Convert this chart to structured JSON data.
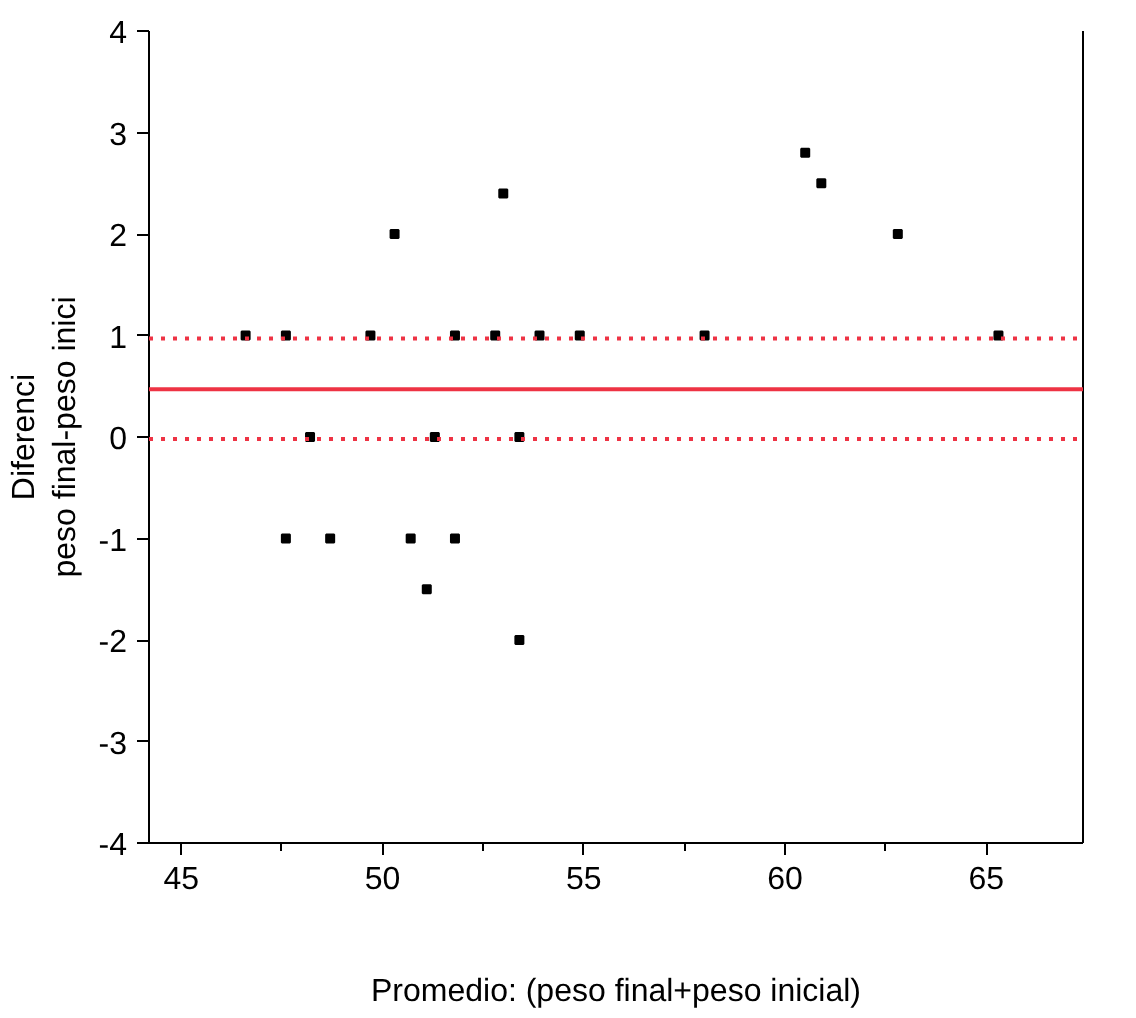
{
  "chart_data": {
    "type": "scatter",
    "xlabel": "Promedio: (peso final+peso inicial)",
    "ylabel": "Diferenci\npeso final-peso inici",
    "x": [
      53.0,
      50.3,
      46.6,
      47.6,
      49.7,
      51.8,
      52.8,
      53.9,
      54.9,
      48.2,
      51.3,
      53.4,
      47.6,
      48.7,
      50.7,
      51.8,
      51.1,
      53.4,
      60.5,
      60.9,
      62.8,
      58.0,
      65.3
    ],
    "series": [
      {
        "color": "#000000",
        "values": [
          2.4,
          2,
          1,
          1,
          1,
          1,
          1,
          1,
          1,
          0,
          0,
          0,
          -1,
          -1,
          -1,
          -1,
          -1.5,
          -2,
          2.8,
          2.5,
          2,
          1,
          1
        ]
      }
    ],
    "marker": "square",
    "xlim": [
      44.2,
      67.4
    ],
    "xticks": [
      45,
      50,
      55,
      60,
      65
    ],
    "ylim": [
      -4,
      4
    ],
    "yticks": [
      -4,
      -3,
      -2,
      -1,
      0,
      1,
      2,
      3,
      4
    ],
    "ref_lines": [
      {
        "axis": "y",
        "value": 0.97,
        "color": "#ee3344",
        "line_style": "dotted"
      },
      {
        "axis": "y",
        "value": 0.47,
        "color": "#ee3344",
        "line_style": "solid"
      },
      {
        "axis": "y",
        "value": -0.02,
        "color": "#ee3344",
        "line_style": "dotted"
      }
    ],
    "grid": false
  }
}
